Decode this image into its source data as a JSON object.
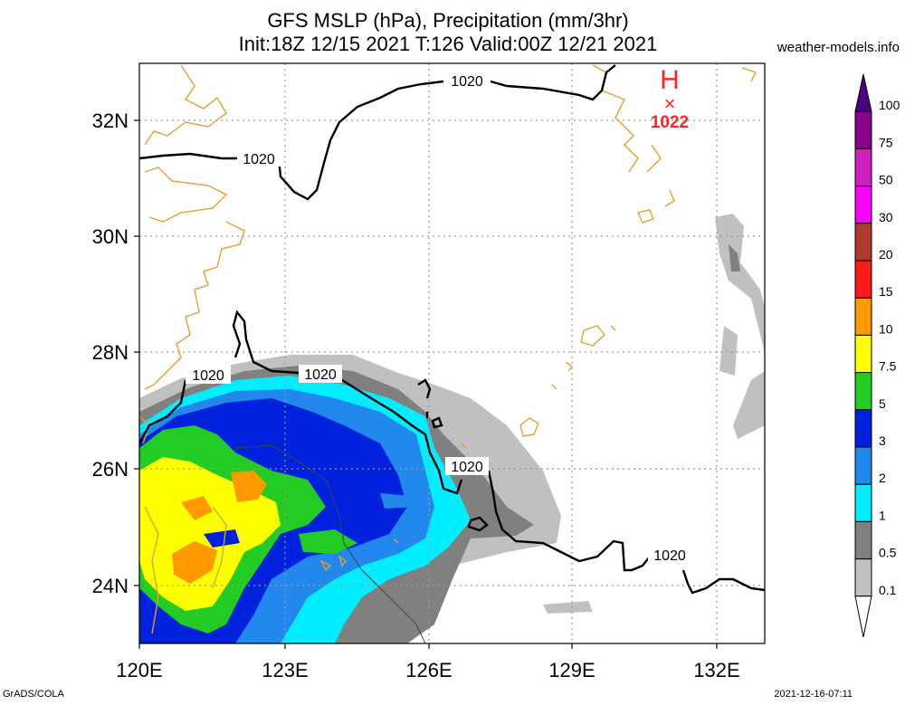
{
  "title_line1": "GFS MSLP (hPa), Precipitation (mm/3hr)",
  "title_line2": "Init:18Z 12/15 2021 T:126 Valid:00Z 12/21 2021",
  "credit": "weather-models.info",
  "footer_left": "GrADS/COLA",
  "footer_right": "2021-12-16-07:11",
  "high_center": {
    "symbol": "H",
    "marker": "×",
    "pressure": "1022"
  },
  "isobar_labels": [
    "1020",
    "1020",
    "1020",
    "1020",
    "1020",
    "1020"
  ],
  "axes": {
    "lon_labels": [
      "120E",
      "123E",
      "126E",
      "129E",
      "132E"
    ],
    "lat_labels": [
      "32N",
      "30N",
      "28N",
      "26N",
      "24N"
    ]
  },
  "colorbar": {
    "levels": [
      "100",
      "75",
      "50",
      "30",
      "20",
      "15",
      "10",
      "7.5",
      "5",
      "3",
      "2",
      "1",
      "0.5",
      "0.1"
    ],
    "colors": [
      "#4b0082",
      "#8b008b",
      "#d01fbf",
      "#ff00ff",
      "#b03a2e",
      "#ff1a1a",
      "#ff9900",
      "#ffff00",
      "#22cc22",
      "#0022dd",
      "#2288ee",
      "#00eeff",
      "#808080",
      "#c0c0c0",
      "#ffffff"
    ]
  },
  "colors": {
    "coastline": "#e0a030",
    "isobar": "#000000",
    "grid": "#999999",
    "high": "#ff2222"
  }
}
